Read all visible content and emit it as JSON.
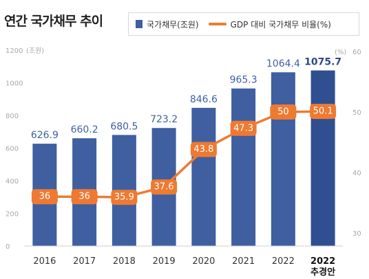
{
  "title": "연간 국가채무 추이",
  "legend": {
    "bar_label": "국가채무(조원)",
    "line_label": "GDP 대비 국가채무 비율(%)"
  },
  "colors": {
    "bar": "#3f5fa0",
    "bar_highlight": "#2f4f90",
    "line": "#ee7a32"
  },
  "chart_data": {
    "type": "bar",
    "categories": [
      "2016",
      "2017",
      "2018",
      "2019",
      "2020",
      "2021",
      "2022",
      "2022"
    ],
    "category_sublabels": [
      "",
      "",
      "",
      "",
      "",
      "",
      "",
      "추경안"
    ],
    "series": [
      {
        "name": "국가채무(조원)",
        "type": "bar",
        "axis": "left",
        "values": [
          626.9,
          660.2,
          680.5,
          723.2,
          846.6,
          965.3,
          1064.4,
          1075.7
        ],
        "labels": [
          "626.9",
          "660.2",
          "680.5",
          "723.2",
          "846.6",
          "965.3",
          "1064.4",
          "1075.7"
        ]
      },
      {
        "name": "GDP 대비 국가채무 비율(%)",
        "type": "line",
        "axis": "right",
        "values": [
          36,
          36,
          35.9,
          37.6,
          43.8,
          47.3,
          50,
          50.1
        ],
        "labels": [
          "36",
          "36",
          "35.9",
          "37.6",
          "43.8",
          "47.3",
          "50",
          "50.1"
        ]
      }
    ],
    "y_left": {
      "unit": "(조원)",
      "ylim": [
        0,
        1200
      ],
      "ticks": [
        0,
        200,
        400,
        600,
        800,
        1000,
        1200
      ],
      "tick_labels": [
        "0",
        "200",
        "400",
        "600",
        "800",
        "1000",
        "1200"
      ]
    },
    "y_right": {
      "unit": "(%)",
      "ylim": [
        20,
        60
      ],
      "ticks": [
        30,
        40,
        50,
        60
      ],
      "tick_labels": [
        "30",
        "40",
        "50",
        "60"
      ]
    },
    "grid": false,
    "legend_position": "top-right"
  }
}
